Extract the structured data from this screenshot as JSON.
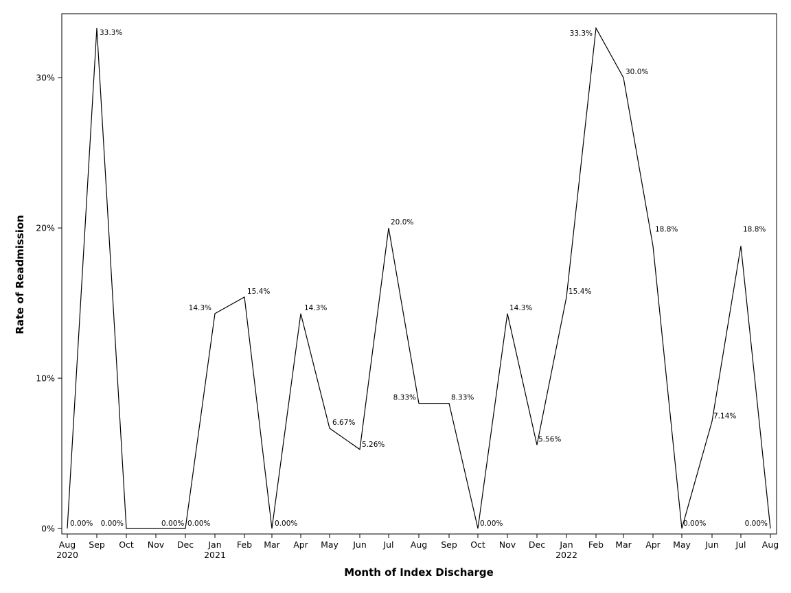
{
  "chart_data": {
    "type": "line",
    "xlabel": "Month of Index Discharge",
    "ylabel": "Rate of Readmission",
    "ylim": [
      0,
      33.8
    ],
    "yticks": [
      0,
      10,
      20,
      30
    ],
    "ytick_labels": [
      "0%",
      "10%",
      "20%",
      "30%"
    ],
    "grid": false,
    "legend": "none",
    "x": [
      "Aug 2020",
      "Sep 2020",
      "Oct 2020",
      "Nov 2020",
      "Dec 2020",
      "Jan 2021",
      "Feb 2021",
      "Mar 2021",
      "Apr 2021",
      "May 2021",
      "Jun 2021",
      "Jul 2021",
      "Aug 2021",
      "Sep 2021",
      "Oct 2021",
      "Nov 2021",
      "Dec 2021",
      "Jan 2022",
      "Feb 2022",
      "Mar 2022",
      "Apr 2022",
      "May 2022",
      "Jun 2022",
      "Jul 2022",
      "Aug 2022"
    ],
    "xtick_month": [
      "Aug",
      "Sep",
      "Oct",
      "Nov",
      "Dec",
      "Jan",
      "Feb",
      "Mar",
      "Apr",
      "May",
      "Jun",
      "Jul",
      "Aug",
      "Sep",
      "Oct",
      "Nov",
      "Dec",
      "Jan",
      "Feb",
      "Mar",
      "Apr",
      "May",
      "Jun",
      "Jul",
      "Aug"
    ],
    "xtick_year": [
      "2020",
      "",
      "",
      "",
      "",
      "2021",
      "",
      "",
      "",
      "",
      "",
      "",
      "",
      "",
      "",
      "",
      "",
      "2022",
      "",
      "",
      "",
      "",
      "",
      "",
      ""
    ],
    "values": [
      0,
      33.3,
      0,
      0,
      0,
      14.3,
      15.4,
      0,
      14.3,
      6.67,
      5.26,
      20.0,
      8.33,
      8.33,
      0,
      14.3,
      5.56,
      15.4,
      33.3,
      30.0,
      18.8,
      0,
      7.14,
      18.8,
      0
    ],
    "data_labels": [
      "0.00%",
      "33.3%",
      "0.00%",
      "0.00%",
      "0.00%",
      "14.3%",
      "15.4%",
      "0.00%",
      "14.3%",
      "6.67%",
      "5.26%",
      "20.0%",
      "8.33%",
      "8.33%",
      "0.00%",
      "14.3%",
      "5.56%",
      "15.4%",
      "33.3%",
      "30.0%",
      "18.8%",
      "0.00%",
      "7.14%",
      "18.8%",
      "0.00%"
    ],
    "line_color": "#000000"
  }
}
